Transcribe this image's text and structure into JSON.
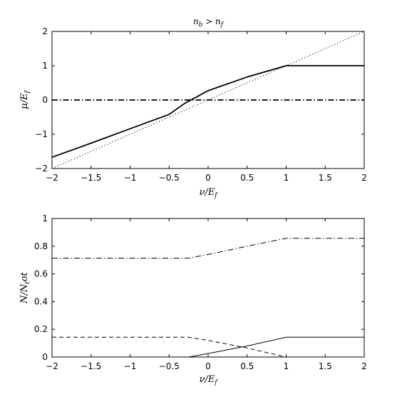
{
  "chart_data": [
    {
      "type": "line",
      "title": "n_b > n_f",
      "xlabel": "ν / E_f",
      "ylabel": "μ / E_f",
      "xlim": [
        -2,
        2
      ],
      "ylim": [
        -2,
        2
      ],
      "xticks": [
        "−2",
        "−1.5",
        "−1",
        "−0.5",
        "0",
        "0.5",
        "1",
        "1.5",
        "2"
      ],
      "yticks": [
        "2",
        "1",
        "0",
        "−1",
        "−2"
      ],
      "grid": false,
      "series": [
        {
          "style": "solid-thick",
          "x": [
            -2,
            -1.5,
            -1,
            -0.5,
            -0.3,
            0,
            0.5,
            1,
            1.5,
            2
          ],
          "y": [
            -1.67,
            -1.26,
            -0.84,
            -0.42,
            -0.1,
            0.27,
            0.67,
            1.0,
            1.0,
            1.0
          ]
        },
        {
          "style": "dotted",
          "x": [
            -2,
            2
          ],
          "y": [
            -2,
            2
          ]
        },
        {
          "style": "dash-dot-thick",
          "x": [
            -2,
            2
          ],
          "y": [
            0,
            0
          ]
        }
      ]
    },
    {
      "type": "line",
      "xlabel": "ν / E_f",
      "ylabel": "N / N_tot",
      "xlim": [
        -2,
        2
      ],
      "ylim": [
        0,
        1
      ],
      "xticks": [
        "−2",
        "−1.5",
        "−1",
        "−0.5",
        "0",
        "0.5",
        "1",
        "1.5",
        "2"
      ],
      "yticks": [
        "1",
        "0.8",
        "0.6",
        "0.4",
        "0.2",
        "0"
      ],
      "grid": false,
      "series": [
        {
          "style": "solid",
          "x": [
            -2,
            -0.25,
            0,
            0.5,
            1,
            1.5,
            2
          ],
          "y": [
            0,
            0,
            0.025,
            0.08,
            0.143,
            0.143,
            0.143
          ]
        },
        {
          "style": "dashed",
          "x": [
            -2,
            -0.25,
            0,
            0.5,
            1
          ],
          "y": [
            0.143,
            0.143,
            0.12,
            0.065,
            0
          ]
        },
        {
          "style": "dash-dot",
          "x": [
            -2,
            -0.25,
            0,
            0.5,
            1,
            1.5,
            2
          ],
          "y": [
            0.714,
            0.714,
            0.74,
            0.8,
            0.857,
            0.857,
            0.857
          ]
        }
      ]
    }
  ]
}
